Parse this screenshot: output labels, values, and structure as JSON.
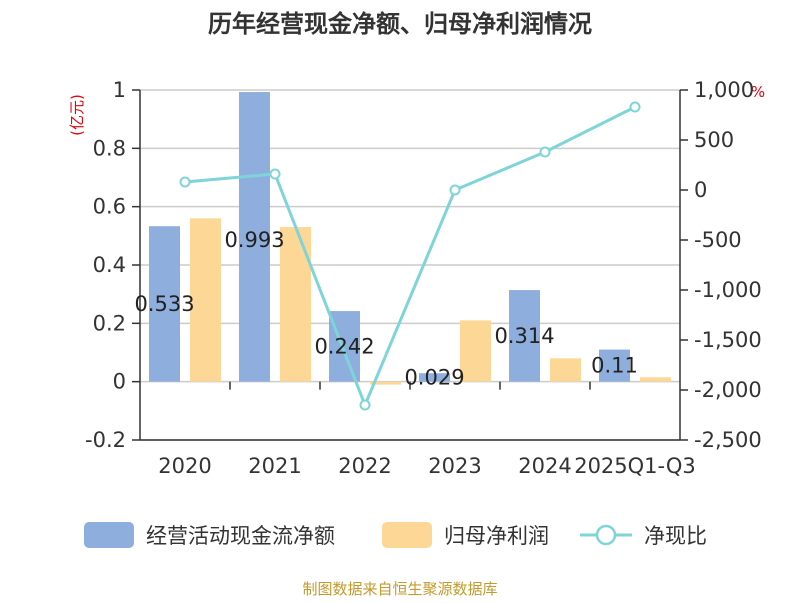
{
  "chart_data": {
    "type": "bar",
    "title": "历年经营现金净额、归母净利润情况",
    "categories": [
      "2020",
      "2021",
      "2022",
      "2023",
      "2024",
      "2025Q1-Q3"
    ],
    "series": [
      {
        "name": "经营活动现金流净额",
        "type": "bar",
        "axis": "left",
        "color": "#8eaede",
        "values": [
          0.533,
          0.993,
          0.242,
          0.029,
          0.314,
          0.11
        ],
        "labels": [
          "0.533",
          "0.993",
          "0.242",
          "0.029",
          "0.314",
          "0.11"
        ]
      },
      {
        "name": "归母净利润",
        "type": "bar",
        "axis": "left",
        "color": "#fdd796",
        "values": [
          0.56,
          0.53,
          -0.01,
          0.21,
          0.08,
          0.015
        ]
      },
      {
        "name": "净现比",
        "type": "line",
        "axis": "right",
        "color": "#7fd4d8",
        "values": [
          80,
          160,
          -2150,
          0,
          380,
          830
        ]
      }
    ],
    "y_left": {
      "unit": "(亿元)",
      "ylim": [
        -0.2,
        1.0
      ],
      "ticks": [
        -0.2,
        0,
        0.2,
        0.4,
        0.6,
        0.8,
        1
      ],
      "tick_labels": [
        "-0.2",
        "0",
        "0.2",
        "0.4",
        "0.6",
        "0.8",
        "1"
      ]
    },
    "y_right": {
      "unit": "%",
      "ylim": [
        -2500,
        1000
      ],
      "ticks": [
        1000,
        500,
        0,
        -500,
        -1000,
        -1500,
        -2000,
        -2500
      ],
      "tick_labels": [
        "1,000",
        "500",
        "0",
        "-500",
        "-1,000",
        "-1,500",
        "-2,000",
        "-2,500"
      ]
    },
    "legend": {
      "position": "bottom"
    },
    "grid": true,
    "source": "制图数据来自恒生聚源数据库"
  }
}
